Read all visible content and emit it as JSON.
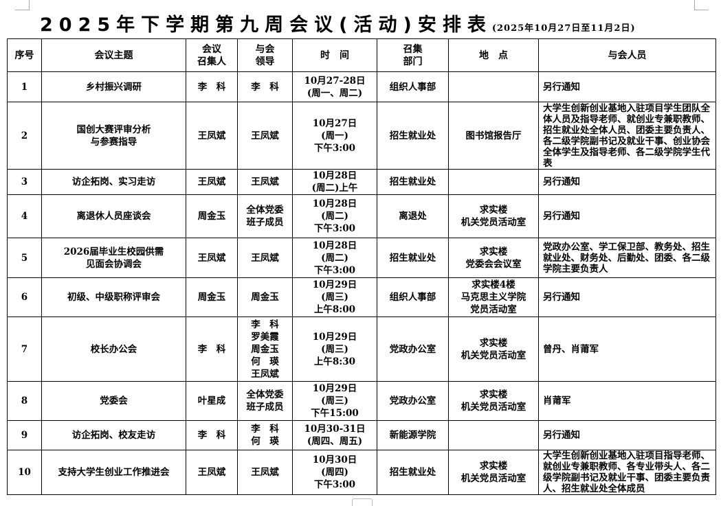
{
  "title": {
    "main": "2025年下学期第九周会议(活动)安排表",
    "sub": "(2025年10月27日至11月2日)"
  },
  "headers": [
    "序号",
    "会议主题",
    "会议\n召集人",
    "与会\n领导",
    "时　间",
    "召集\n部门",
    "地　点",
    "与会人员"
  ],
  "rows": [
    {
      "no": "1",
      "topic": "乡村振兴调研",
      "convener": "李　科",
      "leaders": "李　科",
      "time": "10月27-28日\n(周一、周二)",
      "dept": "组织人事部",
      "place": "",
      "attendees": "另行通知"
    },
    {
      "no": "2",
      "topic": "国创大赛评审分析\n与参赛指导",
      "convener": "王凤斌",
      "leaders": "王凤斌",
      "time": "10月27日\n(周一)\n下午3:00",
      "dept": "招生就业处",
      "place": "图书馆报告厅",
      "attendees": "大学生创新创业基地入驻项目学生团队全体人员及指导老师、就创业专兼职教师、招生就业处全体人员、团委主要负责人、各二级学院副书记及就业干事、创业协会全体学生及指导老师、各二级学院学生代表"
    },
    {
      "no": "3",
      "topic": "访企拓岗、实习走访",
      "convener": "王凤斌",
      "leaders": "王凤斌",
      "time": "10月28日\n(周二)上午",
      "dept": "招生就业处",
      "place": "",
      "attendees": "另行通知"
    },
    {
      "no": "4",
      "topic": "离退休人员座谈会",
      "convener": "周金玉",
      "leaders": "全体党委\n班子成员",
      "time": "10月28日\n(周二)\n下午3:00",
      "dept": "离退处",
      "place": "求实楼\n机关党员活动室",
      "attendees": "另行通知"
    },
    {
      "no": "5",
      "topic": "2026届毕业生校园供需\n见面会协调会",
      "convener": "王凤斌",
      "leaders": "王凤斌",
      "time": "10月28日\n(周二)\n下午3:00",
      "dept": "招生就业处",
      "place": "求实楼\n党委会会议室",
      "attendees": "党政办公室、学工保卫部、教务处、招生就业处、财务处、后勤处、团委、各二级学院主要负责人"
    },
    {
      "no": "6",
      "topic": "初级、中级职称评审会",
      "convener": "周金玉",
      "leaders": "周金玉",
      "time": "10月29日\n(周三)\n上午8:00",
      "dept": "组织人事部",
      "place": "求实楼4楼\n马克思主义学院\n党员活动室",
      "attendees": "另行通知"
    },
    {
      "no": "7",
      "topic": "校长办公会",
      "convener": "李　科",
      "leaders": "李　科\n罗美霞\n周金玉\n何　瑛\n王凤斌",
      "time": "10月29日\n(周三)\n上午8:30",
      "dept": "党政办公室",
      "place": "求实楼\n机关党员活动室",
      "attendees": "曾丹、肖莆军"
    },
    {
      "no": "8",
      "topic": "党委会",
      "convener": "叶星成",
      "leaders": "全体党委\n班子成员",
      "time": "10月29日\n(周三)\n下午15:00",
      "dept": "党政办公室",
      "place": "求实楼\n机关党员活动室",
      "attendees": "肖莆军"
    },
    {
      "no": "9",
      "topic": "访企拓岗、校友走访",
      "convener": "李　科",
      "leaders": "李　科\n何　瑛",
      "time": "10月30-31日\n(周四、周五)",
      "dept": "新能源学院",
      "place": "",
      "attendees": "另行通知"
    },
    {
      "no": "10",
      "topic": "支持大学生创业工作推进会",
      "convener": "王凤斌",
      "leaders": "王凤斌",
      "time": "10月30日\n(周四)\n下午3:00",
      "dept": "招生就业处",
      "place": "求实楼\n机关党员活动室",
      "attendees": "大学生创新创业基地入驻项目指导老师、就创业专兼职教师、各专业带头人、各二级学院副书记及就业干事、团委主要负责人、招生就业处全体成员"
    }
  ]
}
